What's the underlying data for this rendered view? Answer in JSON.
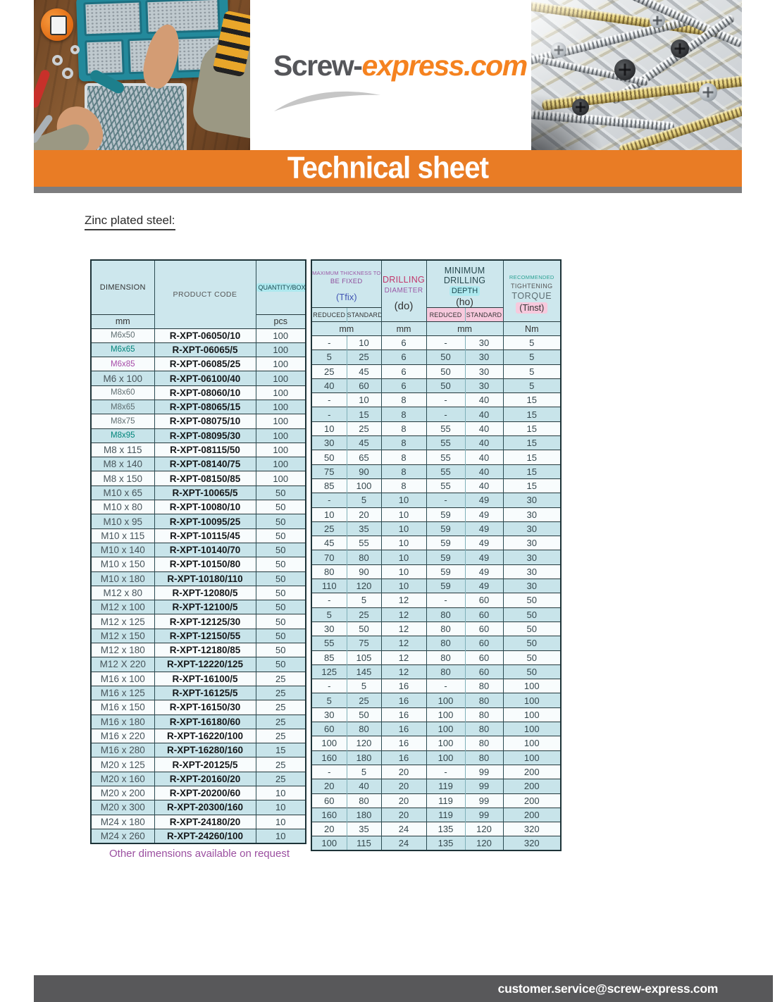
{
  "logo": {
    "part1": "Screw-",
    "part2": "express.com"
  },
  "banner": {
    "title": "Technical sheet"
  },
  "page": {
    "section_title": "Zinc plated steel:",
    "note": "Other dimensions available on request"
  },
  "footer": {
    "email": "customer.service@screw-express.com"
  },
  "colors": {
    "accent_orange": "#E97C25",
    "table_blue_row": "#C8E4EA",
    "footer_gray": "#58585A",
    "cyan_highlight": "#AEE9EF",
    "pink_highlight": "#F7C9DD",
    "teal_text": "#00857B",
    "purple_text": "#A64AA8",
    "magenta_text": "#C2376B",
    "blue_text": "#4356B4"
  },
  "table": {
    "header": {
      "dimension": "DIMENSION",
      "product_code": "PRODUCT CODE",
      "quantity_box": "QUANTITY/BOX",
      "max_thickness_l1": "MAXIMUM THICKNESS TO",
      "max_thickness_l2": "BE FIXED",
      "tfix": "(Tfix)",
      "drilling_l1": "DRILLING",
      "drilling_l2": "DIAMETER",
      "do": "(do)",
      "min_drilling_l1": "MINIMUM DRILLING",
      "depth": "DEPTH",
      "ho": "(ho)",
      "torque_l1": "RECOMMENDED",
      "torque_l2": "TIGHTENING",
      "torque_l3": "TORQUE",
      "tinst": "(Tinst)",
      "reduced": "REDUCED",
      "standard": "STANDARD",
      "unit_mm": "mm",
      "unit_pcs": "pcs",
      "unit_nm": "Nm"
    },
    "rows": [
      {
        "dim": "M6x50",
        "c": "",
        "code": "R-XPT-06050/10",
        "qty": "100",
        "vals": [
          "-",
          "10",
          "6",
          "-",
          "30",
          "5"
        ]
      },
      {
        "dim": "M6x65",
        "c": "teal",
        "code": "R-XPT-06065/5",
        "qty": "100",
        "vals": [
          "5",
          "25",
          "6",
          "50",
          "30",
          "5"
        ]
      },
      {
        "dim": "M6x85",
        "c": "purple",
        "code": "R-XPT-06085/25",
        "qty": "100",
        "vals": [
          "25",
          "45",
          "6",
          "50",
          "30",
          "5"
        ]
      },
      {
        "dim": "M6 x 100",
        "c": "",
        "code": "R-XPT-06100/40",
        "qty": "100",
        "vals": [
          "40",
          "60",
          "6",
          "50",
          "30",
          "5"
        ]
      },
      {
        "dim": "M8x60",
        "c": "",
        "code": "R-XPT-08060/10",
        "qty": "100",
        "vals": [
          "-",
          "10",
          "8",
          "-",
          "40",
          "15"
        ]
      },
      {
        "dim": "M8x65",
        "c": "",
        "code": "R-XPT-08065/15",
        "qty": "100",
        "vals": [
          "-",
          "15",
          "8",
          "-",
          "40",
          "15"
        ]
      },
      {
        "dim": "M8x75",
        "c": "",
        "code": "R-XPT-08075/10",
        "qty": "100",
        "vals": [
          "10",
          "25",
          "8",
          "55",
          "40",
          "15"
        ]
      },
      {
        "dim": "M8x95",
        "c": "teal",
        "code": "R-XPT-08095/30",
        "qty": "100",
        "vals": [
          "30",
          "45",
          "8",
          "55",
          "40",
          "15"
        ]
      },
      {
        "dim": "M8 x 115",
        "c": "",
        "code": "R-XPT-08115/50",
        "qty": "100",
        "vals": [
          "50",
          "65",
          "8",
          "55",
          "40",
          "15"
        ]
      },
      {
        "dim": "M8 x 140",
        "c": "",
        "code": "R-XPT-08140/75",
        "qty": "100",
        "vals": [
          "75",
          "90",
          "8",
          "55",
          "40",
          "15"
        ]
      },
      {
        "dim": "M8 x 150",
        "c": "",
        "code": "R-XPT-08150/85",
        "qty": "100",
        "vals": [
          "85",
          "100",
          "8",
          "55",
          "40",
          "15"
        ]
      },
      {
        "dim": "M10 x 65",
        "c": "",
        "code": "R-XPT-10065/5",
        "qty": "50",
        "vals": [
          "-",
          "5",
          "10",
          "-",
          "49",
          "30"
        ]
      },
      {
        "dim": "M10 x 80",
        "c": "",
        "code": "R-XPT-10080/10",
        "qty": "50",
        "vals": [
          "10",
          "20",
          "10",
          "59",
          "49",
          "30"
        ]
      },
      {
        "dim": "M10 x 95",
        "c": "",
        "code": "R-XPT-10095/25",
        "qty": "50",
        "vals": [
          "25",
          "35",
          "10",
          "59",
          "49",
          "30"
        ]
      },
      {
        "dim": "M10 x 115",
        "c": "",
        "code": "R-XPT-10115/45",
        "qty": "50",
        "vals": [
          "45",
          "55",
          "10",
          "59",
          "49",
          "30"
        ]
      },
      {
        "dim": "M10 x 140",
        "c": "",
        "code": "R-XPT-10140/70",
        "qty": "50",
        "vals": [
          "70",
          "80",
          "10",
          "59",
          "49",
          "30"
        ]
      },
      {
        "dim": "M10 x 150",
        "c": "",
        "code": "R-XPT-10150/80",
        "qty": "50",
        "vals": [
          "80",
          "90",
          "10",
          "59",
          "49",
          "30"
        ]
      },
      {
        "dim": "M10 x 180",
        "c": "",
        "code": "R-XPT-10180/110",
        "qty": "50",
        "vals": [
          "110",
          "120",
          "10",
          "59",
          "49",
          "30"
        ]
      },
      {
        "dim": "M12 x 80",
        "c": "",
        "code": "R-XPT-12080/5",
        "qty": "50",
        "vals": [
          "-",
          "5",
          "12",
          "-",
          "60",
          "50"
        ]
      },
      {
        "dim": "M12 x 100",
        "c": "",
        "code": "R-XPT-12100/5",
        "qty": "50",
        "vals": [
          "5",
          "25",
          "12",
          "80",
          "60",
          "50"
        ]
      },
      {
        "dim": "M12 x 125",
        "c": "",
        "code": "R-XPT-12125/30",
        "qty": "50",
        "vals": [
          "30",
          "50",
          "12",
          "80",
          "60",
          "50"
        ]
      },
      {
        "dim": "M12 x 150",
        "c": "",
        "code": "R-XPT-12150/55",
        "qty": "50",
        "vals": [
          "55",
          "75",
          "12",
          "80",
          "60",
          "50"
        ]
      },
      {
        "dim": "M12 x 180",
        "c": "",
        "code": "R-XPT-12180/85",
        "qty": "50",
        "vals": [
          "85",
          "105",
          "12",
          "80",
          "60",
          "50"
        ]
      },
      {
        "dim": "M12 X 220",
        "c": "",
        "code": "R-XPT-12220/125",
        "qty": "50",
        "vals": [
          "125",
          "145",
          "12",
          "80",
          "60",
          "50"
        ]
      },
      {
        "dim": "M16 x 100",
        "c": "",
        "code": "R-XPT-16100/5",
        "qty": "25",
        "vals": [
          "-",
          "5",
          "16",
          "-",
          "80",
          "100"
        ]
      },
      {
        "dim": "M16 x 125",
        "c": "",
        "code": "R-XPT-16125/5",
        "qty": "25",
        "vals": [
          "5",
          "25",
          "16",
          "100",
          "80",
          "100"
        ]
      },
      {
        "dim": "M16 x 150",
        "c": "",
        "code": "R-XPT-16150/30",
        "qty": "25",
        "vals": [
          "30",
          "50",
          "16",
          "100",
          "80",
          "100"
        ]
      },
      {
        "dim": "M16 x 180",
        "c": "",
        "code": "R-XPT-16180/60",
        "qty": "25",
        "vals": [
          "60",
          "80",
          "16",
          "100",
          "80",
          "100"
        ]
      },
      {
        "dim": "M16 x 220",
        "c": "",
        "code": "R-XPT-16220/100",
        "qty": "25",
        "vals": [
          "100",
          "120",
          "16",
          "100",
          "80",
          "100"
        ]
      },
      {
        "dim": "M16 x 280",
        "c": "",
        "code": "R-XPT-16280/160",
        "qty": "15",
        "vals": [
          "160",
          "180",
          "16",
          "100",
          "80",
          "100"
        ]
      },
      {
        "dim": "M20 x 125",
        "c": "",
        "code": "R-XPT-20125/5",
        "qty": "25",
        "vals": [
          "-",
          "5",
          "20",
          "-",
          "99",
          "200"
        ]
      },
      {
        "dim": "M20 x 160",
        "c": "",
        "code": "R-XPT-20160/20",
        "qty": "25",
        "vals": [
          "20",
          "40",
          "20",
          "119",
          "99",
          "200"
        ]
      },
      {
        "dim": "M20 x 200",
        "c": "",
        "code": "R-XPT-20200/60",
        "qty": "10",
        "vals": [
          "60",
          "80",
          "20",
          "119",
          "99",
          "200"
        ]
      },
      {
        "dim": "M20 x 300",
        "c": "",
        "code": "R-XPT-20300/160",
        "qty": "10",
        "vals": [
          "160",
          "180",
          "20",
          "119",
          "99",
          "200"
        ]
      },
      {
        "dim": "M24 x 180",
        "c": "",
        "code": "R-XPT-24180/20",
        "qty": "10",
        "vals": [
          "20",
          "35",
          "24",
          "135",
          "120",
          "320"
        ]
      },
      {
        "dim": "M24 x 260",
        "c": "",
        "code": "R-XPT-24260/100",
        "qty": "10",
        "vals": [
          "100",
          "115",
          "24",
          "135",
          "120",
          "320"
        ]
      }
    ]
  }
}
